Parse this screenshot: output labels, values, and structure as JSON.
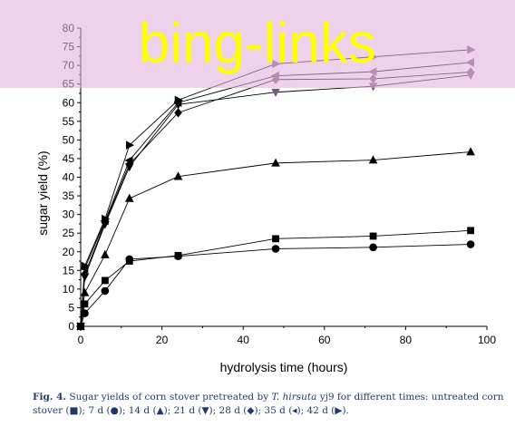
{
  "chart_data": {
    "type": "line",
    "xlabel": "hydrolysis time (hours)",
    "ylabel": "sugar yield (%)",
    "xlim": [
      0,
      100
    ],
    "ylim": [
      0,
      80
    ],
    "xticks": [
      0,
      20,
      40,
      60,
      80,
      100
    ],
    "yticks": [
      0,
      5,
      10,
      15,
      20,
      25,
      30,
      35,
      40,
      45,
      50,
      55,
      60,
      65,
      70,
      75,
      80
    ],
    "grid": false,
    "series": [
      {
        "marker": "square",
        "x": [
          0,
          1,
          6,
          12,
          24,
          48,
          72,
          96
        ],
        "y": [
          0,
          6,
          12.3,
          17.5,
          19,
          23.5,
          24.2,
          25.7
        ]
      },
      {
        "marker": "circle",
        "x": [
          0,
          1,
          6,
          12,
          24,
          48,
          72,
          96
        ],
        "y": [
          0,
          3.5,
          9.5,
          18,
          18.8,
          20.8,
          21.2,
          22
        ]
      },
      {
        "marker": "triangle-up",
        "x": [
          0,
          1,
          6,
          12,
          24,
          48,
          72,
          96
        ],
        "y": [
          0,
          9,
          19.2,
          34.3,
          40.2,
          43.8,
          44.6,
          46.8
        ]
      },
      {
        "marker": "triangle-down",
        "x": [
          0,
          1,
          6,
          12,
          24,
          48,
          72,
          96
        ],
        "y": [
          0,
          13.3,
          27.4,
          42.8,
          59.5,
          62.8,
          64.4,
          67.4
        ]
      },
      {
        "marker": "diamond",
        "x": [
          0,
          1,
          6,
          12,
          24,
          48,
          72,
          96
        ],
        "y": [
          0,
          14,
          27.8,
          43.5,
          57.3,
          66.2,
          66.4,
          68.2
        ]
      },
      {
        "marker": "triangle-left",
        "x": [
          0,
          1,
          6,
          12,
          24,
          48,
          72,
          96
        ],
        "y": [
          0,
          15.5,
          28.3,
          44.5,
          60,
          67.2,
          68.3,
          70.8
        ]
      },
      {
        "marker": "triangle-right",
        "x": [
          0,
          1,
          6,
          12,
          24,
          48,
          72,
          96
        ],
        "y": [
          0,
          16.2,
          28.8,
          48.6,
          60.7,
          70.4,
          72.3,
          74.2
        ]
      }
    ]
  },
  "caption": {
    "label": "Fig. 4.",
    "text_before_species": "Sugar yields of corn stover pretreated by",
    "species": "T. hirsuta",
    "text_after_species": "yj9 for different times: untreated corn stover (■); 7 d (●); 14 d (▲); 21 d (▼); 28 d (◆); 35 d (◂); 42 d (▶)."
  },
  "watermark": {
    "text": "bing-links",
    "band_color": "#e1b2dc",
    "text_color": "#ffff00"
  },
  "colors": {
    "axis": "#000000",
    "series_line": "#000000",
    "late_marker_tint": "#7a5a7a",
    "caption_text": "#1f3a6a"
  }
}
